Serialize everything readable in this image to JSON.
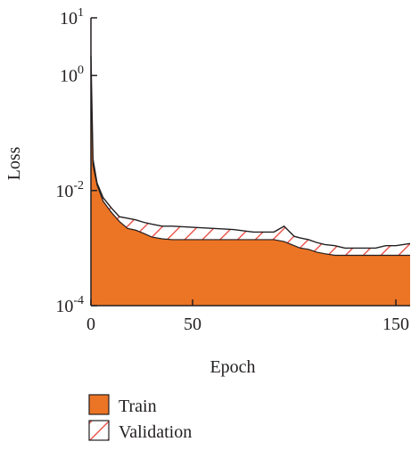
{
  "chart_data": {
    "type": "area",
    "title": "",
    "xlabel": "Epoch",
    "ylabel": "Loss",
    "xlim": [
      0,
      157
    ],
    "ylim": [
      0.0001,
      10
    ],
    "yscale": "log",
    "x_ticks": [
      0,
      50,
      150
    ],
    "x_tick_labels": [
      "0",
      "50",
      "150"
    ],
    "y_ticks": [
      0.0001,
      0.01,
      1,
      10
    ],
    "y_tick_labels": [
      {
        "base": "10",
        "exp": "-4"
      },
      {
        "base": "10",
        "exp": "-2"
      },
      {
        "base": "10",
        "exp": "0"
      },
      {
        "base": "10",
        "exp": "1"
      }
    ],
    "legend_position": "bottom-left",
    "grid": false,
    "series": [
      {
        "name": "Train",
        "color": "#ec7425",
        "fill": "solid",
        "x": [
          0,
          1,
          3,
          6,
          10,
          14,
          18,
          22,
          26,
          30,
          35,
          40,
          50,
          60,
          70,
          80,
          90,
          95,
          100,
          103,
          107,
          111,
          115,
          120,
          125,
          130,
          135,
          140,
          145,
          150,
          157
        ],
        "y": [
          1.0,
          0.028,
          0.0125,
          0.0065,
          0.0042,
          0.0029,
          0.0022,
          0.00205,
          0.0018,
          0.00155,
          0.00145,
          0.0014,
          0.0014,
          0.0014,
          0.0014,
          0.0014,
          0.0014,
          0.0013,
          0.0011,
          0.001,
          0.00095,
          0.00085,
          0.0008,
          0.00075,
          0.00075,
          0.00075,
          0.00075,
          0.00075,
          0.00075,
          0.00075,
          0.00075
        ]
      },
      {
        "name": "Validation",
        "color": "#e8443a",
        "fill": "hatch",
        "x": [
          0,
          1,
          3,
          6,
          10,
          14,
          18,
          22,
          26,
          30,
          35,
          40,
          50,
          60,
          70,
          80,
          90,
          95,
          100,
          103,
          107,
          111,
          115,
          120,
          125,
          130,
          135,
          140,
          145,
          150,
          157
        ],
        "y": [
          2.2,
          0.035,
          0.0135,
          0.0075,
          0.005,
          0.0035,
          0.0033,
          0.0031,
          0.0028,
          0.0026,
          0.0024,
          0.0024,
          0.0023,
          0.0022,
          0.0021,
          0.0019,
          0.0019,
          0.0024,
          0.0016,
          0.0015,
          0.0014,
          0.00125,
          0.00115,
          0.0011,
          0.001,
          0.001,
          0.001,
          0.001,
          0.0011,
          0.0011,
          0.0012
        ]
      }
    ]
  }
}
